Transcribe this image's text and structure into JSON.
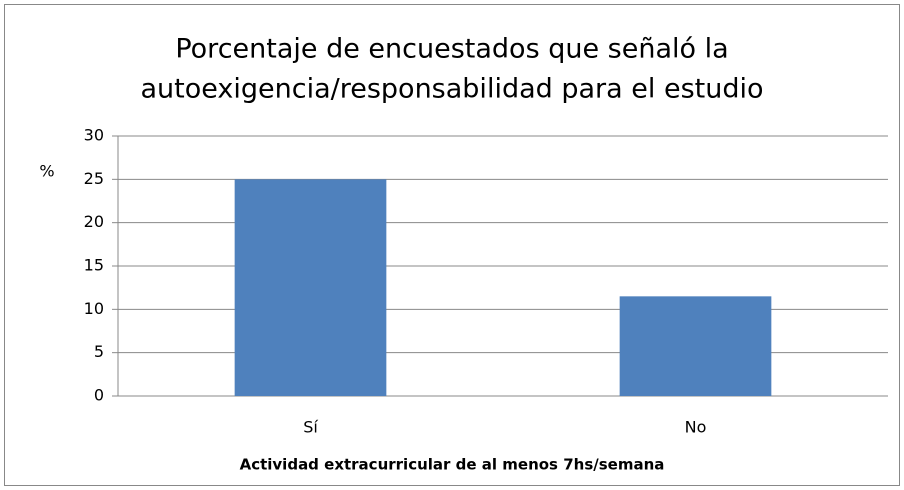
{
  "chart_data": {
    "type": "bar",
    "title": [
      "Porcentaje de encuestados que señaló la",
      "autoexigencia/responsabilidad para el estudio"
    ],
    "y_label": "%",
    "x_label": "Actividad extracurricular de al menos 7hs/semana",
    "categories": [
      "Sí",
      "No"
    ],
    "values": [
      25,
      11.5
    ],
    "color": "#4f81bd",
    "ylim": [
      0,
      30
    ],
    "yticks": [
      0,
      5,
      10,
      15,
      20,
      25,
      30
    ],
    "grid": true
  }
}
